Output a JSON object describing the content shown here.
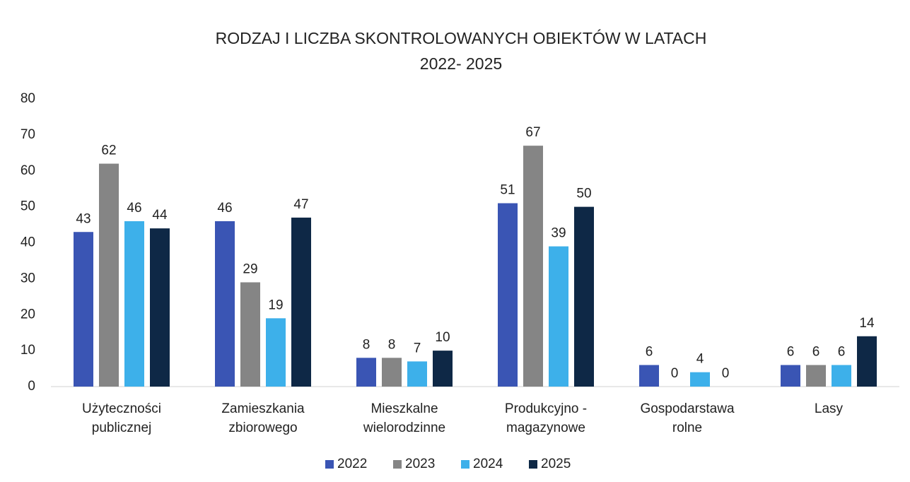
{
  "chart_data": {
    "type": "bar",
    "title": [
      "RODZAJ I LICZBA SKONTROLOWANYCH OBIEKTÓW W LATACH",
      "2022- 2025"
    ],
    "categories": [
      [
        "Użyteczności",
        "publicznej"
      ],
      [
        "Zamieszkania",
        "zbiorowego"
      ],
      [
        "Mieszkalne",
        "wielorodzinne"
      ],
      [
        "Produkcyjno -",
        "magazynowe"
      ],
      [
        "Gospodarstawa",
        "rolne"
      ],
      [
        "Lasy"
      ]
    ],
    "series": [
      {
        "name": "2022",
        "color": "#3a55b4",
        "values": [
          43,
          46,
          8,
          51,
          6,
          6
        ]
      },
      {
        "name": "2023",
        "color": "#858585",
        "values": [
          62,
          29,
          8,
          67,
          0,
          6
        ]
      },
      {
        "name": "2024",
        "color": "#3db0ea",
        "values": [
          46,
          19,
          7,
          39,
          4,
          6
        ]
      },
      {
        "name": "2025",
        "color": "#0e2846",
        "values": [
          44,
          47,
          10,
          50,
          0,
          14
        ]
      }
    ],
    "ylim": [
      0,
      80
    ],
    "yticks": [
      0,
      10,
      20,
      30,
      40,
      50,
      60,
      70,
      80
    ],
    "grid": false,
    "legend": "bottom"
  }
}
